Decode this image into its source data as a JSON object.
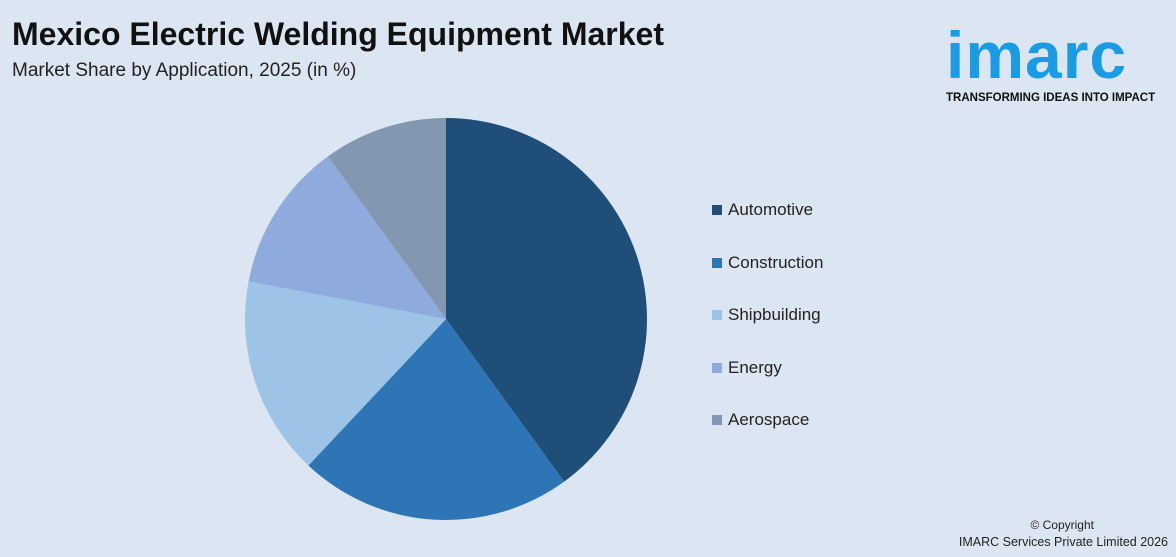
{
  "title": "Mexico Electric Welding Equipment Market",
  "subtitle": "Market Share by Application, 2025 (in %)",
  "logo": {
    "word": "imarc",
    "tagline": "TRANSFORMING IDEAS INTO IMPACT"
  },
  "footer": {
    "copyright": "© Copyright",
    "company": "IMARC Services Private Limited 2026"
  },
  "chart_data": {
    "type": "pie",
    "title": "Mexico Electric Welding Equipment Market",
    "subtitle": "Market Share by Application, 2025 (in %)",
    "legend_placement": "right",
    "categories": [
      "Automotive",
      "Construction",
      "Shipbuilding",
      "Energy",
      "Aerospace"
    ],
    "values": [
      40,
      22,
      16,
      12,
      10
    ],
    "colors": [
      "#1f4e79",
      "#2e75b6",
      "#9dc3e6",
      "#8faadc",
      "#8497b0"
    ]
  }
}
